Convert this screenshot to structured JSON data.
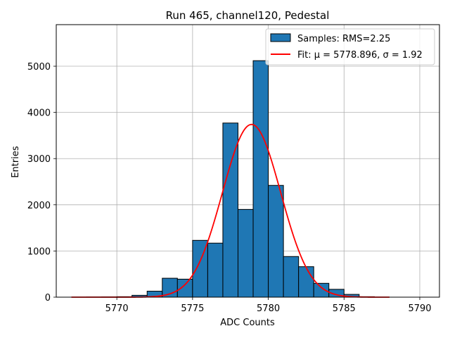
{
  "chart_data": {
    "type": "bar",
    "title": "Run 465, channel120, Pedestal",
    "xlabel": "ADC Counts",
    "ylabel": "Entries",
    "xlim": [
      5766,
      5791.3
    ],
    "ylim": [
      0,
      5900
    ],
    "xticks": [
      5770,
      5775,
      5780,
      5785,
      5790
    ],
    "yticks": [
      0,
      1000,
      2000,
      3000,
      4000,
      5000
    ],
    "grid": true,
    "legend_position": "top-right",
    "bin_edges": [
      5768.0,
      5769.0,
      5770.0,
      5771.0,
      5772.0,
      5773.0,
      5774.0,
      5775.0,
      5776.0,
      5777.0,
      5778.0,
      5779.0,
      5780.0,
      5781.0,
      5782.0,
      5783.0,
      5784.0,
      5785.0,
      5786.0,
      5787.0
    ],
    "series": [
      {
        "name": "Samples: RMS=2.25",
        "kind": "histogram",
        "color": "#1f77b4",
        "edgecolor": "#000000",
        "values": [
          2,
          5,
          10,
          40,
          130,
          410,
          390,
          1230,
          1170,
          3770,
          1900,
          5120,
          2420,
          880,
          660,
          300,
          170,
          60,
          10
        ]
      },
      {
        "name": "Fit: μ = 5778.896, σ = 1.92",
        "kind": "line",
        "color": "#ff0000",
        "mu": 5778.896,
        "sigma": 1.92,
        "amplitude": 3740,
        "x_range": [
          5767,
          5788
        ]
      }
    ]
  }
}
